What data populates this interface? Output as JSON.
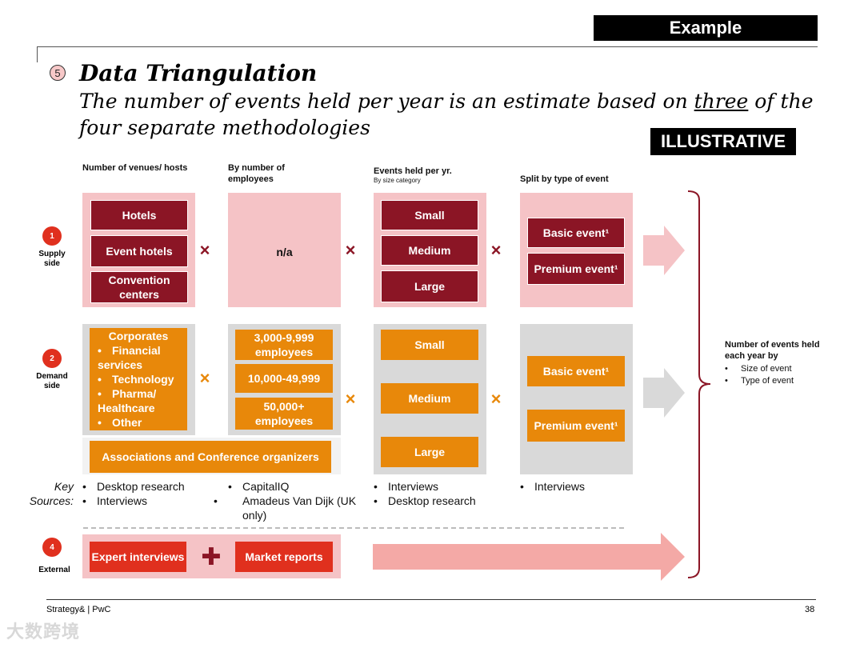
{
  "header": {
    "example_label": "Example",
    "step_number": "5",
    "title": "Data Triangulation",
    "subtitle_before": "The number of events held per year is an estimate based on ",
    "subtitle_underlined": "three",
    "subtitle_after": " of the four separate methodologies",
    "illustrative_label": "ILLUSTRATIVE"
  },
  "columns": [
    {
      "label": "Number of venues/ hosts",
      "sublabel": ""
    },
    {
      "label": "By number of employees",
      "sublabel": ""
    },
    {
      "label": "Events held per yr.",
      "sublabel": "By size category"
    },
    {
      "label": "Split by type of event",
      "sublabel": ""
    }
  ],
  "rows": {
    "supply": {
      "badge": "1",
      "label": "Supply side"
    },
    "demand": {
      "badge": "2",
      "label": "Demand side"
    },
    "external": {
      "badge": "4",
      "label": "External"
    }
  },
  "operator": "×",
  "plus": "✚",
  "supply": {
    "venues": [
      "Hotels",
      "Event hotels",
      "Convention centers"
    ],
    "employees": "n/a",
    "sizes": [
      "Small",
      "Medium",
      "Large"
    ],
    "types": [
      "Basic event¹",
      "Premium event¹"
    ]
  },
  "demand": {
    "corporates_title": "Corporates",
    "corporates": [
      "Financial services",
      "Technology",
      "Pharma/ Healthcare",
      "Other"
    ],
    "employees": [
      "3,000-9,999 employees",
      "10,000-49,999",
      "50,000+ employees"
    ],
    "associations": "Associations and Conference organizers",
    "sizes": [
      "Small",
      "Medium",
      "Large"
    ],
    "types": [
      "Basic event¹",
      "Premium event¹"
    ]
  },
  "key_sources": {
    "label": "Key Sources:",
    "col1": [
      "Desktop research",
      "Interviews"
    ],
    "col2": [
      "CapitalIQ",
      "Amadeus Van Dijk (UK only)"
    ],
    "col3": [
      "Interviews",
      "Desktop research"
    ],
    "col4": [
      "Interviews"
    ]
  },
  "external": {
    "left": "Expert interviews",
    "right": "Market reports"
  },
  "result": {
    "title": "Number of events held each year by",
    "items": [
      "Size of event",
      "Type of event"
    ]
  },
  "footer": {
    "left": "Strategy& | PwC",
    "page": "38"
  },
  "watermark": "大数跨境",
  "colors": {
    "dark_red": "#8b1525",
    "orange": "#e8880a",
    "red": "#e0301e",
    "pink": "#f5c3c6"
  }
}
